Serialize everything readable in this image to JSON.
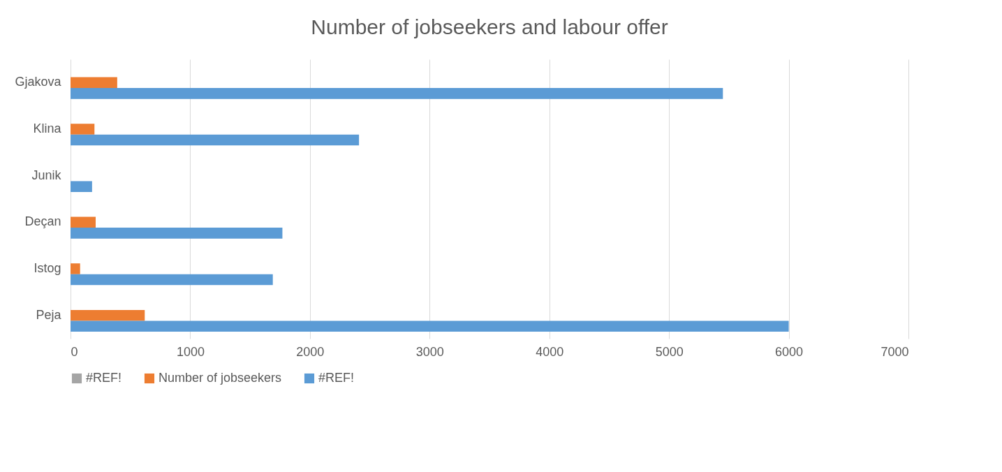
{
  "chart_data": {
    "type": "bar",
    "orientation": "horizontal",
    "title": "Number of jobseekers and labour offer",
    "categories": [
      "Gjakova",
      "Klina",
      "Junik",
      "Deçan",
      "Istog",
      "Peja"
    ],
    "series": [
      {
        "name": "#REF!",
        "color": "#a5a5a5",
        "values": [
          null,
          null,
          null,
          null,
          null,
          null
        ]
      },
      {
        "name": "Number of jobseekers",
        "color": "#ed7d31",
        "values": [
          390,
          200,
          0,
          210,
          80,
          620
        ]
      },
      {
        "name": "#REF!",
        "color": "#5b9bd5",
        "values": [
          5450,
          2410,
          180,
          1770,
          1690,
          6000
        ]
      }
    ],
    "xlim": [
      0,
      7000
    ],
    "xticks": [
      0,
      1000,
      2000,
      3000,
      4000,
      5000,
      6000,
      7000
    ],
    "grid": "x",
    "legend": "bottom"
  }
}
